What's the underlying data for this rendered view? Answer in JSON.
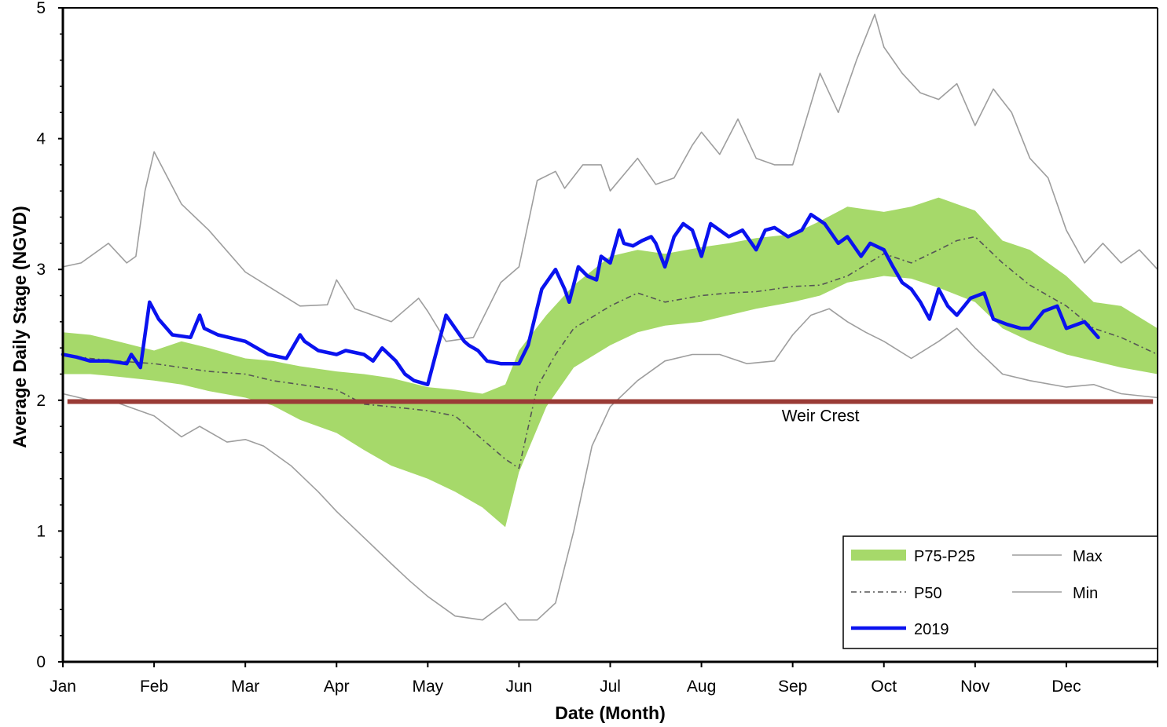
{
  "chart_data": {
    "type": "line",
    "title": "",
    "xlabel": "Date (Month)",
    "ylabel": "Average Daily Stage (NGVD)",
    "ylim": [
      0,
      5
    ],
    "xlim": [
      0,
      12
    ],
    "yticks": [
      0,
      1,
      2,
      3,
      4,
      5
    ],
    "month_labels": [
      "Jan",
      "Feb",
      "Mar",
      "Apr",
      "May",
      "Jun",
      "Jul",
      "Aug",
      "Sep",
      "Oct",
      "Nov",
      "Dec"
    ],
    "grid": false,
    "legend_position": "bottom-right",
    "weir_crest": {
      "label": "Weir Crest",
      "value": 1.99,
      "color": "#9a3b36"
    },
    "series": [
      {
        "name": "P75-P25",
        "kind": "band",
        "color": "#a6d96a",
        "x": [
          0,
          0.3,
          0.6,
          1.0,
          1.3,
          1.6,
          2.0,
          2.3,
          2.6,
          3.0,
          3.3,
          3.6,
          4.0,
          4.3,
          4.6,
          4.85,
          5.0,
          5.3,
          5.6,
          6.0,
          6.3,
          6.6,
          7.0,
          7.3,
          7.6,
          8.0,
          8.3,
          8.6,
          9.0,
          9.3,
          9.6,
          10.0,
          10.3,
          10.6,
          11.0,
          11.3,
          11.6,
          12.0
        ],
        "upper": [
          2.52,
          2.5,
          2.45,
          2.38,
          2.45,
          2.4,
          2.32,
          2.3,
          2.26,
          2.22,
          2.2,
          2.17,
          2.1,
          2.08,
          2.05,
          2.12,
          2.38,
          2.65,
          2.88,
          3.1,
          3.15,
          3.12,
          3.17,
          3.2,
          3.24,
          3.27,
          3.37,
          3.48,
          3.44,
          3.48,
          3.55,
          3.45,
          3.22,
          3.15,
          2.95,
          2.75,
          2.72,
          2.55
        ],
        "lower": [
          2.2,
          2.2,
          2.18,
          2.15,
          2.12,
          2.07,
          2.02,
          1.96,
          1.85,
          1.75,
          1.62,
          1.5,
          1.4,
          1.3,
          1.18,
          1.03,
          1.45,
          1.95,
          2.25,
          2.42,
          2.52,
          2.57,
          2.6,
          2.65,
          2.7,
          2.75,
          2.8,
          2.9,
          2.95,
          2.93,
          2.86,
          2.75,
          2.55,
          2.45,
          2.35,
          2.3,
          2.25,
          2.2
        ]
      },
      {
        "name": "Max",
        "kind": "line",
        "color": "#9e9e9e",
        "x": [
          0,
          0.2,
          0.5,
          0.7,
          0.8,
          0.9,
          1.0,
          1.3,
          1.6,
          2.0,
          2.3,
          2.6,
          2.9,
          3.0,
          3.2,
          3.6,
          3.9,
          4.0,
          4.2,
          4.5,
          4.8,
          5.0,
          5.2,
          5.4,
          5.5,
          5.7,
          5.9,
          6.0,
          6.3,
          6.5,
          6.7,
          6.9,
          7.0,
          7.2,
          7.4,
          7.6,
          7.8,
          8.0,
          8.3,
          8.5,
          8.7,
          8.9,
          9.0,
          9.2,
          9.4,
          9.6,
          9.8,
          10.0,
          10.2,
          10.4,
          10.6,
          10.8,
          11.0,
          11.2,
          11.4,
          11.6,
          11.8,
          12.0
        ],
        "y": [
          3.02,
          3.05,
          3.2,
          3.05,
          3.1,
          3.6,
          3.9,
          3.5,
          3.3,
          2.98,
          2.85,
          2.72,
          2.73,
          2.92,
          2.7,
          2.6,
          2.78,
          2.68,
          2.45,
          2.48,
          2.9,
          3.02,
          3.68,
          3.75,
          3.62,
          3.8,
          3.8,
          3.6,
          3.85,
          3.65,
          3.7,
          3.95,
          4.05,
          3.88,
          4.15,
          3.85,
          3.8,
          3.8,
          4.5,
          4.2,
          4.6,
          4.95,
          4.7,
          4.5,
          4.35,
          4.3,
          4.42,
          4.1,
          4.38,
          4.2,
          3.85,
          3.7,
          3.3,
          3.05,
          3.2,
          3.05,
          3.15,
          3.0
        ]
      },
      {
        "name": "P50",
        "kind": "line",
        "color": "#555555",
        "dash": true,
        "x": [
          0,
          0.3,
          0.6,
          1.0,
          1.3,
          1.6,
          2.0,
          2.3,
          2.6,
          3.0,
          3.3,
          3.6,
          4.0,
          4.3,
          4.6,
          4.85,
          5.0,
          5.2,
          5.4,
          5.6,
          6.0,
          6.3,
          6.6,
          7.0,
          7.3,
          7.6,
          8.0,
          8.3,
          8.6,
          9.0,
          9.3,
          9.6,
          9.8,
          10.0,
          10.3,
          10.6,
          11.0,
          11.3,
          11.6,
          12.0
        ],
        "y": [
          2.35,
          2.32,
          2.3,
          2.28,
          2.25,
          2.22,
          2.2,
          2.15,
          2.12,
          2.08,
          1.97,
          1.95,
          1.92,
          1.88,
          1.7,
          1.55,
          1.48,
          2.1,
          2.35,
          2.55,
          2.72,
          2.82,
          2.75,
          2.8,
          2.82,
          2.83,
          2.87,
          2.88,
          2.95,
          3.12,
          3.05,
          3.15,
          3.22,
          3.25,
          3.05,
          2.88,
          2.72,
          2.55,
          2.48,
          2.35
        ]
      },
      {
        "name": "Min",
        "kind": "line",
        "color": "#9e9e9e",
        "x": [
          0,
          0.3,
          0.6,
          1.0,
          1.3,
          1.5,
          1.8,
          2.0,
          2.2,
          2.5,
          2.8,
          3.0,
          3.3,
          3.6,
          3.8,
          4.0,
          4.3,
          4.6,
          4.85,
          5.0,
          5.2,
          5.4,
          5.6,
          5.8,
          6.0,
          6.3,
          6.6,
          6.9,
          7.2,
          7.5,
          7.8,
          8.0,
          8.2,
          8.4,
          8.6,
          8.8,
          9.0,
          9.3,
          9.6,
          9.8,
          10.0,
          10.3,
          10.6,
          11.0,
          11.3,
          11.6,
          12.0
        ],
        "y": [
          2.05,
          2.0,
          1.98,
          1.88,
          1.72,
          1.8,
          1.68,
          1.7,
          1.65,
          1.5,
          1.3,
          1.15,
          0.95,
          0.75,
          0.62,
          0.5,
          0.35,
          0.32,
          0.45,
          0.32,
          0.32,
          0.45,
          1.0,
          1.65,
          1.95,
          2.15,
          2.3,
          2.35,
          2.35,
          2.28,
          2.3,
          2.5,
          2.65,
          2.7,
          2.6,
          2.52,
          2.45,
          2.32,
          2.45,
          2.55,
          2.4,
          2.2,
          2.15,
          2.1,
          2.12,
          2.05,
          2.02
        ]
      },
      {
        "name": "2019",
        "kind": "line",
        "color": "#0a12ef",
        "x": [
          0,
          0.15,
          0.3,
          0.5,
          0.7,
          0.75,
          0.85,
          0.95,
          1.05,
          1.2,
          1.4,
          1.5,
          1.55,
          1.7,
          2.0,
          2.25,
          2.45,
          2.6,
          2.65,
          2.8,
          3.0,
          3.1,
          3.3,
          3.4,
          3.5,
          3.65,
          3.75,
          3.85,
          4.0,
          4.2,
          4.4,
          4.45,
          4.55,
          4.65,
          4.8,
          5.0,
          5.1,
          5.25,
          5.4,
          5.5,
          5.55,
          5.65,
          5.75,
          5.85,
          5.9,
          6.0,
          6.1,
          6.15,
          6.25,
          6.35,
          6.45,
          6.5,
          6.6,
          6.7,
          6.8,
          6.9,
          7.0,
          7.1,
          7.2,
          7.3,
          7.45,
          7.6,
          7.7,
          7.8,
          7.95,
          8.1,
          8.2,
          8.35,
          8.5,
          8.6,
          8.75,
          8.85,
          9.0,
          9.1,
          9.2,
          9.3,
          9.4,
          9.5,
          9.6,
          9.7,
          9.8,
          9.95,
          10.1,
          10.2,
          10.35,
          10.5,
          10.6,
          10.75,
          10.9,
          11.0,
          11.2,
          11.35
        ],
        "y": [
          2.35,
          2.33,
          2.3,
          2.3,
          2.28,
          2.35,
          2.25,
          2.75,
          2.62,
          2.5,
          2.48,
          2.65,
          2.55,
          2.5,
          2.45,
          2.35,
          2.32,
          2.5,
          2.45,
          2.38,
          2.35,
          2.38,
          2.35,
          2.3,
          2.4,
          2.3,
          2.2,
          2.15,
          2.12,
          2.65,
          2.45,
          2.42,
          2.38,
          2.3,
          2.28,
          2.28,
          2.42,
          2.85,
          3.0,
          2.85,
          2.75,
          3.02,
          2.95,
          2.92,
          3.1,
          3.05,
          3.3,
          3.2,
          3.18,
          3.22,
          3.25,
          3.2,
          3.02,
          3.25,
          3.35,
          3.3,
          3.1,
          3.35,
          3.3,
          3.25,
          3.3,
          3.15,
          3.3,
          3.32,
          3.25,
          3.3,
          3.42,
          3.35,
          3.2,
          3.25,
          3.1,
          3.2,
          3.15,
          3.02,
          2.9,
          2.85,
          2.75,
          2.62,
          2.85,
          2.72,
          2.65,
          2.78,
          2.82,
          2.62,
          2.58,
          2.55,
          2.55,
          2.68,
          2.72,
          2.55,
          2.6,
          2.48
        ]
      }
    ]
  }
}
